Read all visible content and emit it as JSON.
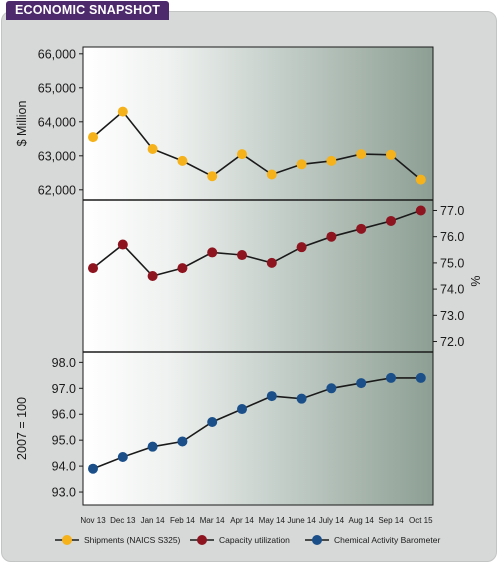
{
  "header": {
    "title": "ECONOMIC SNAPSHOT"
  },
  "chart_data": {
    "type": "line",
    "categories": [
      "Nov 13",
      "Dec 13",
      "Jan 14",
      "Feb 14",
      "Mar 14",
      "Apr 14",
      "May 14",
      "June 14",
      "July 14",
      "Aug 14",
      "Sep 14",
      "Oct 15"
    ],
    "panels": [
      {
        "series_name": "Shipments (NAICS S325)",
        "color": "#f5b21a",
        "ylabel": "$ Million",
        "ylabel_side": "left",
        "ylim": [
          61700,
          66200
        ],
        "ticks": [
          62000,
          63000,
          64000,
          65000,
          66000
        ],
        "tick_labels": [
          "62,000",
          "63,000",
          "64,000",
          "65,000",
          "66,000"
        ],
        "values": [
          63550,
          64300,
          63200,
          62850,
          62400,
          63050,
          62450,
          62750,
          62850,
          63050,
          63030,
          62300
        ]
      },
      {
        "series_name": "Capacity utilization",
        "color": "#8e1420",
        "ylabel": "%",
        "ylabel_side": "right",
        "ylim": [
          71.6,
          77.4
        ],
        "ticks": [
          72.0,
          73.0,
          74.0,
          75.0,
          76.0,
          77.0
        ],
        "tick_labels": [
          "72.0",
          "73.0",
          "74.0",
          "75.0",
          "76.0",
          "77.0"
        ],
        "values": [
          74.8,
          75.7,
          74.5,
          74.8,
          75.4,
          75.3,
          75.0,
          75.6,
          76.0,
          76.3,
          76.6,
          77.0
        ]
      },
      {
        "series_name": "Chemical Activity Barometer",
        "color": "#1a4f8a",
        "ylabel": "2007 = 100",
        "ylabel_side": "left",
        "ylim": [
          92.5,
          98.4
        ],
        "ticks": [
          93.0,
          94.0,
          95.0,
          96.0,
          97.0,
          98.0
        ],
        "tick_labels": [
          "93.0",
          "94.0",
          "95.0",
          "96.0",
          "97.0",
          "98.0"
        ],
        "values": [
          93.9,
          94.35,
          94.75,
          94.95,
          95.7,
          96.2,
          96.7,
          96.6,
          97.0,
          97.2,
          97.4,
          97.4
        ]
      }
    ],
    "legend": {
      "placement": "bottom",
      "entries": [
        {
          "label": "Shipments (NAICS S325)",
          "color": "#f5b21a"
        },
        {
          "label": "Capacity utilization",
          "color": "#8e1420"
        },
        {
          "label": "Chemical Activity Barometer",
          "color": "#1a4f8a"
        }
      ]
    },
    "grid": false
  }
}
